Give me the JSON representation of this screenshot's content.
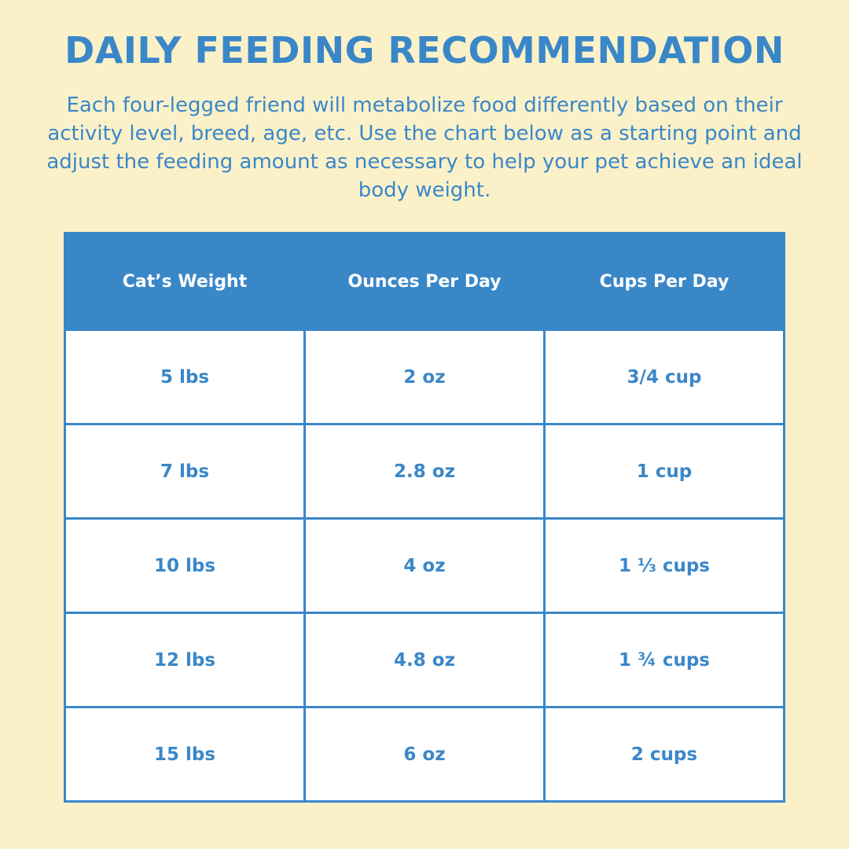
{
  "title": "DAILY FEEDING RECOMMENDATION",
  "intro": "Each four-legged friend will metabolize food differently based on their activity level, breed, age, etc. Use the chart below as a starting point and adjust the feeding amount as necessary to help your pet achieve an ideal body weight.",
  "colors": {
    "background": "#faf1c9",
    "accent": "#3a87c8",
    "cell": "#ffffff"
  },
  "table": {
    "headers": [
      "Cat’s Weight",
      "Ounces Per Day",
      "Cups Per Day"
    ],
    "rows": [
      [
        "5 lbs",
        "2 oz",
        "3/4 cup"
      ],
      [
        "7 lbs",
        "2.8 oz",
        "1 cup"
      ],
      [
        "10 lbs",
        "4 oz",
        "1 ⅓ cups"
      ],
      [
        "12 lbs",
        "4.8 oz",
        "1 ¾ cups"
      ],
      [
        "15 lbs",
        "6 oz",
        "2 cups"
      ]
    ]
  }
}
